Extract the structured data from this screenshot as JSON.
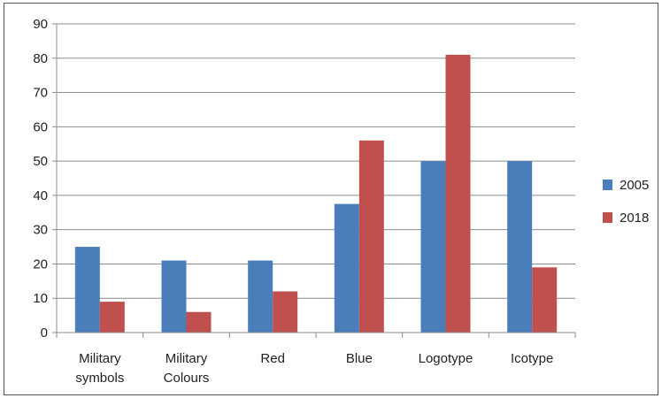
{
  "chart_data": {
    "type": "bar",
    "categories": [
      [
        "Military",
        "symbols"
      ],
      [
        "Military",
        "Colours"
      ],
      [
        "Red"
      ],
      [
        "Blue"
      ],
      [
        "Logotype"
      ],
      [
        "Icotype"
      ]
    ],
    "series": [
      {
        "name": "2005",
        "color": "#4a7ebb",
        "values": [
          25,
          21,
          21,
          37.5,
          50,
          50
        ]
      },
      {
        "name": "2018",
        "color": "#c0504d",
        "values": [
          9,
          6,
          12,
          56,
          81,
          19
        ]
      }
    ],
    "yticks": [
      0,
      10,
      20,
      30,
      40,
      50,
      60,
      70,
      80,
      90
    ],
    "ylim": [
      0,
      90
    ],
    "grid": true,
    "legend_position": "right",
    "title": "",
    "xlabel": "",
    "ylabel": ""
  }
}
